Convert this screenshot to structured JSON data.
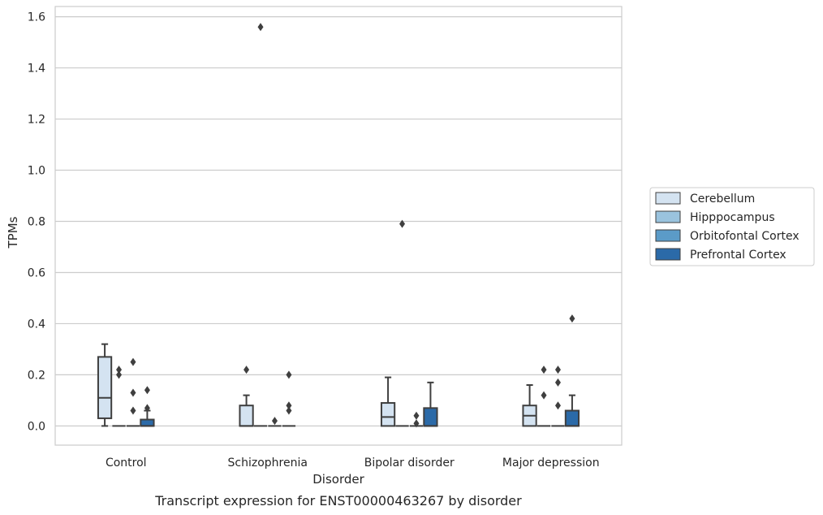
{
  "chart_data": {
    "type": "box",
    "caption": "Transcript expression for ENST00000463267 by disorder",
    "xlabel": "Disorder",
    "ylabel": "TPMs",
    "ylim": [
      -0.075,
      1.64
    ],
    "yticks": [
      0.0,
      0.2,
      0.4,
      0.6,
      0.8,
      1.0,
      1.2,
      1.4,
      1.6
    ],
    "ytick_labels": [
      "0.0",
      "0.2",
      "0.4",
      "0.6",
      "0.8",
      "1.0",
      "1.2",
      "1.4",
      "1.6"
    ],
    "grid": true,
    "legend_position": "right",
    "categories": [
      "Control",
      "Schizophrenia",
      "Bipolar disorder",
      "Major depression"
    ],
    "series": [
      {
        "name": "Cerebellum",
        "color": "#d4e3f1",
        "boxes": [
          {
            "q1": 0.03,
            "median": 0.11,
            "q3": 0.27,
            "whisker_low": 0.0,
            "whisker_high": 0.32,
            "outliers": []
          },
          {
            "q1": 0.0,
            "median": 0.0,
            "q3": 0.08,
            "whisker_low": 0.0,
            "whisker_high": 0.12,
            "outliers": [
              0.22
            ]
          },
          {
            "q1": 0.0,
            "median": 0.035,
            "q3": 0.09,
            "whisker_low": 0.0,
            "whisker_high": 0.19,
            "outliers": []
          },
          {
            "q1": 0.0,
            "median": 0.04,
            "q3": 0.08,
            "whisker_low": 0.0,
            "whisker_high": 0.16,
            "outliers": []
          }
        ]
      },
      {
        "name": "Hipppocampus",
        "color": "#9ac3de",
        "boxes": [
          {
            "q1": 0.0,
            "median": 0.0,
            "q3": 0.0,
            "whisker_low": 0.0,
            "whisker_high": 0.0,
            "outliers": [
              0.2,
              0.22
            ]
          },
          {
            "q1": 0.0,
            "median": 0.0,
            "q3": 0.0,
            "whisker_low": 0.0,
            "whisker_high": 0.0,
            "outliers": [
              1.56
            ]
          },
          {
            "q1": 0.0,
            "median": 0.0,
            "q3": 0.0,
            "whisker_low": 0.0,
            "whisker_high": 0.0,
            "outliers": [
              0.79
            ]
          },
          {
            "q1": 0.0,
            "median": 0.0,
            "q3": 0.0,
            "whisker_low": 0.0,
            "whisker_high": 0.0,
            "outliers": [
              0.12,
              0.22
            ]
          }
        ]
      },
      {
        "name": "Orbitofontal Cortex",
        "color": "#5b9bc8",
        "boxes": [
          {
            "q1": 0.0,
            "median": 0.0,
            "q3": 0.0,
            "whisker_low": 0.0,
            "whisker_high": 0.0,
            "outliers": [
              0.06,
              0.13,
              0.25
            ]
          },
          {
            "q1": 0.0,
            "median": 0.0,
            "q3": 0.0,
            "whisker_low": 0.0,
            "whisker_high": 0.0,
            "outliers": [
              0.02
            ]
          },
          {
            "q1": 0.0,
            "median": 0.0,
            "q3": 0.0,
            "whisker_low": 0.0,
            "whisker_high": 0.0,
            "outliers": [
              0.01,
              0.04
            ]
          },
          {
            "q1": 0.0,
            "median": 0.0,
            "q3": 0.0,
            "whisker_low": 0.0,
            "whisker_high": 0.0,
            "outliers": [
              0.08,
              0.17,
              0.22
            ]
          }
        ]
      },
      {
        "name": "Prefrontal Cortex",
        "color": "#2b6aa8",
        "boxes": [
          {
            "q1": 0.0,
            "median": 0.0,
            "q3": 0.025,
            "whisker_low": 0.0,
            "whisker_high": 0.06,
            "outliers": [
              0.07,
              0.14
            ]
          },
          {
            "q1": 0.0,
            "median": 0.0,
            "q3": 0.0,
            "whisker_low": 0.0,
            "whisker_high": 0.0,
            "outliers": [
              0.06,
              0.08,
              0.2
            ]
          },
          {
            "q1": 0.0,
            "median": 0.0,
            "q3": 0.07,
            "whisker_low": 0.0,
            "whisker_high": 0.17,
            "outliers": []
          },
          {
            "q1": 0.0,
            "median": 0.0,
            "q3": 0.06,
            "whisker_low": 0.0,
            "whisker_high": 0.12,
            "outliers": [
              0.42
            ]
          }
        ]
      }
    ]
  }
}
